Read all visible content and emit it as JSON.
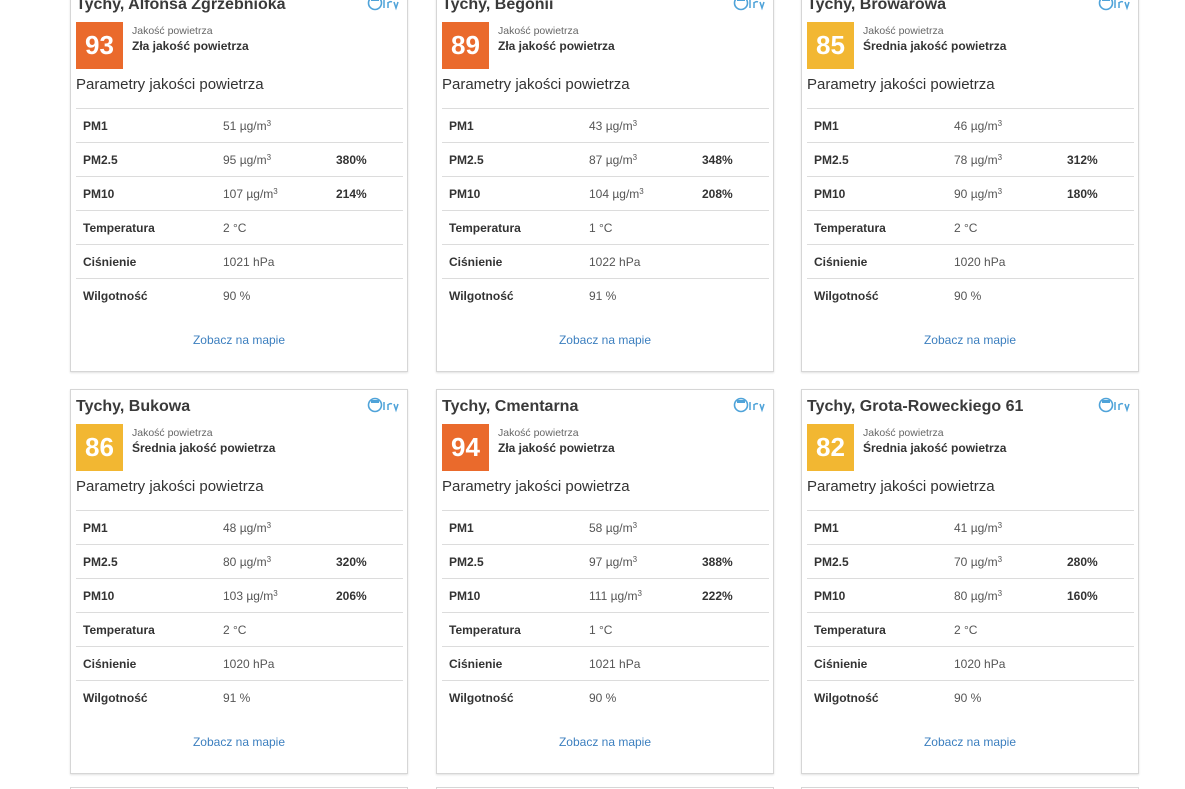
{
  "colors": {
    "bad": "#ea6a2c",
    "moderate": "#f2b732",
    "link": "#3c7fbf",
    "logo": "#4fa3d9"
  },
  "card_common": {
    "quality_caption": "Jakość powietrza",
    "section_heading": "Parametry jakości powietrza",
    "map_link": "Zobacz na mapie",
    "logo_icon": "airly-logo-icon",
    "labels": {
      "pm1": "PM1",
      "pm25": "PM2.5",
      "pm10": "PM10",
      "temp": "Temperatura",
      "pressure": "Ciśnienie",
      "humidity": "Wilgotność"
    }
  },
  "cards": [
    {
      "title": "Tychy, Alfonsa Zgrzebnioka",
      "index": "93",
      "quality": "Zła jakość powietrza",
      "level": "bad",
      "pm1": "51",
      "pm25": "95",
      "pm25_pct": "380%",
      "pm10": "107",
      "pm10_pct": "214%",
      "temp": "2 °C",
      "pressure": "1021 hPa",
      "humidity": "90 %"
    },
    {
      "title": "Tychy, Begonii",
      "index": "89",
      "quality": "Zła jakość powietrza",
      "level": "bad",
      "pm1": "43",
      "pm25": "87",
      "pm25_pct": "348%",
      "pm10": "104",
      "pm10_pct": "208%",
      "temp": "1 °C",
      "pressure": "1022 hPa",
      "humidity": "91 %"
    },
    {
      "title": "Tychy, Browarowa",
      "index": "85",
      "quality": "Średnia jakość powietrza",
      "level": "moderate",
      "pm1": "46",
      "pm25": "78",
      "pm25_pct": "312%",
      "pm10": "90",
      "pm10_pct": "180%",
      "temp": "2 °C",
      "pressure": "1020 hPa",
      "humidity": "90 %"
    },
    {
      "title": "Tychy, Bukowa",
      "index": "86",
      "quality": "Średnia jakość powietrza",
      "level": "moderate",
      "pm1": "48",
      "pm25": "80",
      "pm25_pct": "320%",
      "pm10": "103",
      "pm10_pct": "206%",
      "temp": "2 °C",
      "pressure": "1020 hPa",
      "humidity": "91 %"
    },
    {
      "title": "Tychy, Cmentarna",
      "index": "94",
      "quality": "Zła jakość powietrza",
      "level": "bad",
      "pm1": "58",
      "pm25": "97",
      "pm25_pct": "388%",
      "pm10": "111",
      "pm10_pct": "222%",
      "temp": "1 °C",
      "pressure": "1021 hPa",
      "humidity": "90 %"
    },
    {
      "title": "Tychy, Grota-Roweckiego 61",
      "index": "82",
      "quality": "Średnia jakość powietrza",
      "level": "moderate",
      "pm1": "41",
      "pm25": "70",
      "pm25_pct": "280%",
      "pm10": "80",
      "pm10_pct": "160%",
      "temp": "2 °C",
      "pressure": "1020 hPa",
      "humidity": "90 %"
    }
  ]
}
